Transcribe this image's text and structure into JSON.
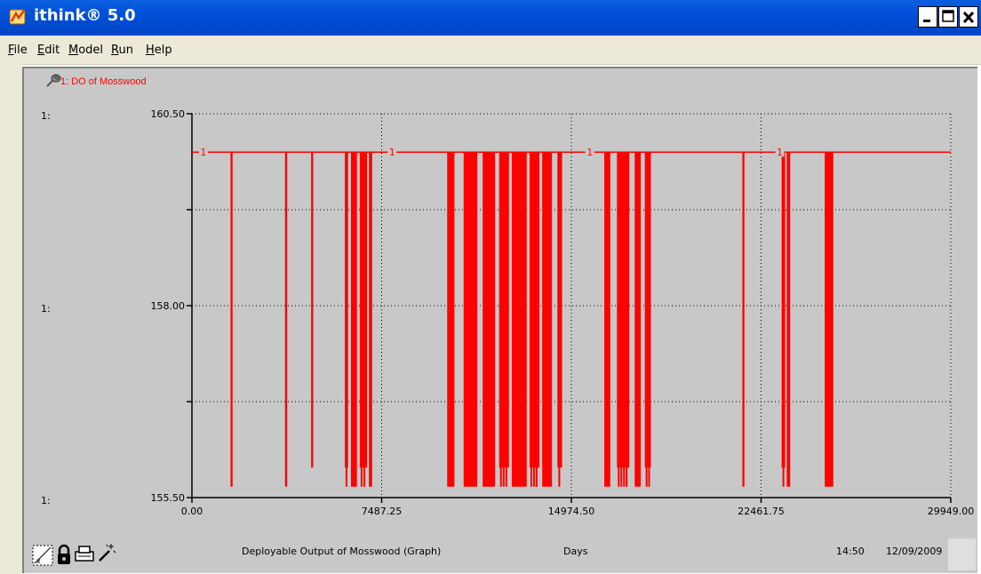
{
  "window": {
    "title": "ithink® 5.0"
  },
  "menu": [
    "File",
    "Edit",
    "Model",
    "Run",
    "Help"
  ],
  "graph": {
    "series_label": "1: DO of Mosswood",
    "scale_prefix": "1:"
  },
  "status": {
    "caption": "Deployable Output of Mosswood (Graph)",
    "unit": "Days",
    "time": "14:50",
    "date": "12/09/2009"
  },
  "chart_data": {
    "type": "line",
    "x_ticks": [
      "0.00",
      "7487.25",
      "14974.50",
      "22461.75",
      "29949.00"
    ],
    "y_ticks": [
      "160.50",
      "158.00",
      "155.50"
    ],
    "xlim": [
      0,
      29949
    ],
    "ylim": [
      155.5,
      160.5
    ],
    "xlabel": "Days",
    "grid": true,
    "series": [
      {
        "name": "1: DO of Mosswood",
        "color": "#ff0000",
        "marker_label": "1",
        "high_value": 160.0,
        "low_value": 155.65,
        "dips": [
          [
            1550,
            1600,
            155.65
          ],
          [
            3700,
            3750,
            155.65
          ],
          [
            4730,
            4780,
            155.9
          ],
          [
            6060,
            6150,
            155.9
          ],
          [
            6300,
            6500,
            155.65
          ],
          [
            6650,
            6900,
            155.9
          ],
          [
            7010,
            7100,
            155.65
          ],
          [
            10100,
            10350,
            155.65
          ],
          [
            10750,
            11250,
            155.65
          ],
          [
            11500,
            11950,
            155.65
          ],
          [
            12150,
            12500,
            155.9
          ],
          [
            12650,
            13200,
            155.65
          ],
          [
            13350,
            13700,
            155.9
          ],
          [
            13850,
            14200,
            155.65
          ],
          [
            14450,
            14600,
            155.9
          ],
          [
            16300,
            16500,
            155.65
          ],
          [
            16800,
            17250,
            155.9
          ],
          [
            17500,
            17700,
            155.65
          ],
          [
            17900,
            18100,
            155.9
          ],
          [
            21750,
            21800,
            155.65
          ],
          [
            23300,
            23400,
            155.9
          ],
          [
            23500,
            23600,
            155.65
          ],
          [
            25000,
            25300,
            155.65
          ]
        ]
      }
    ]
  }
}
